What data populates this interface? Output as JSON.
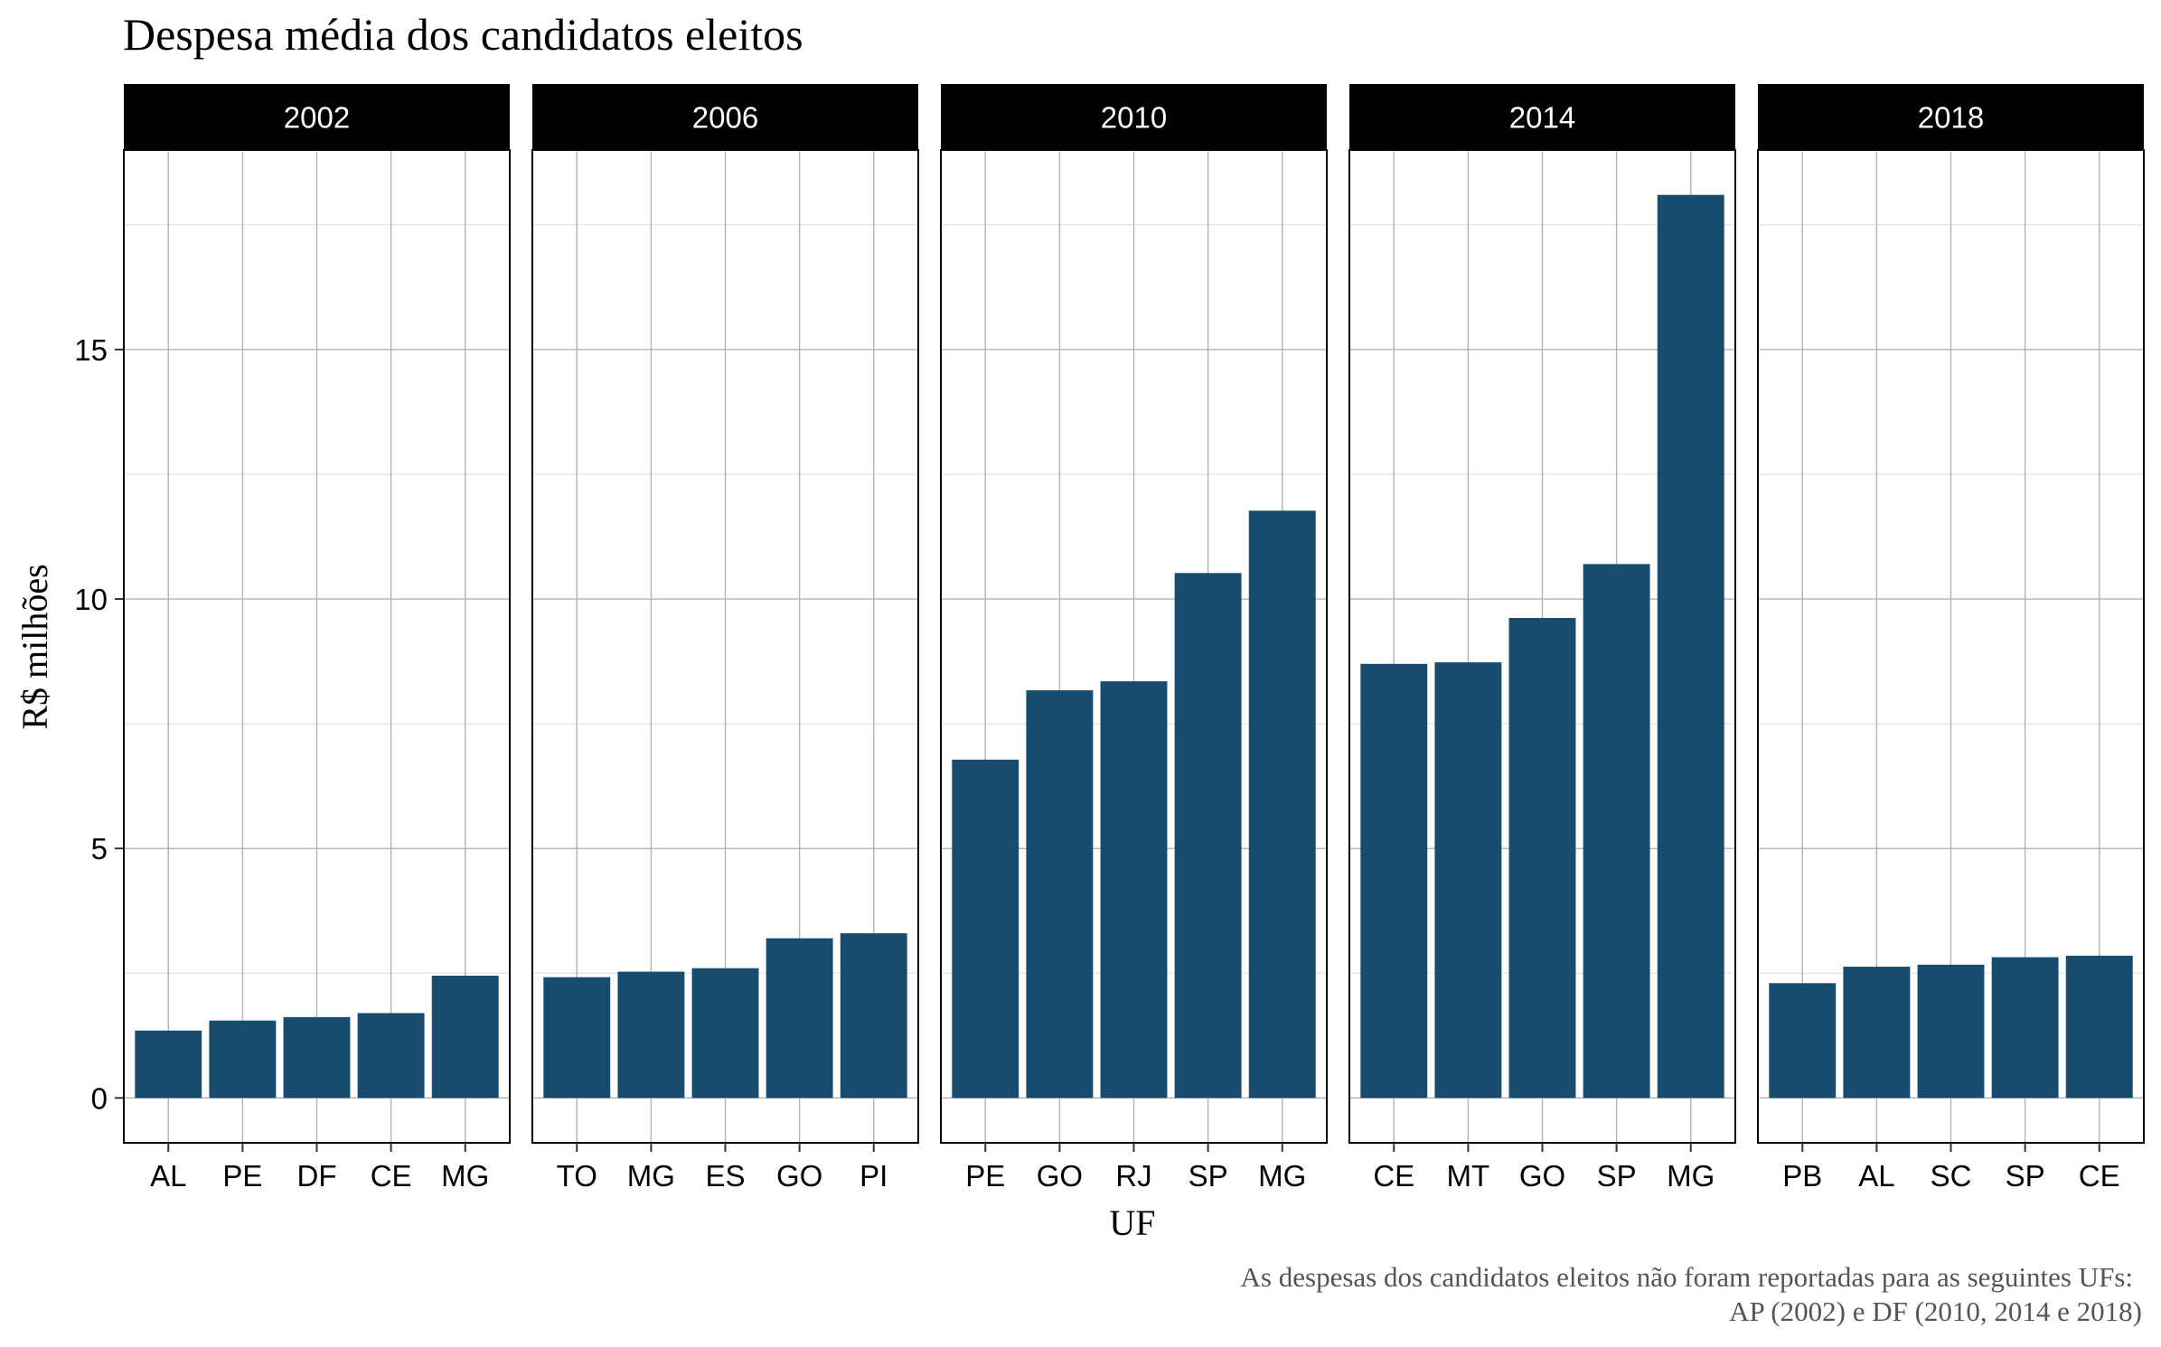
{
  "chart_data": {
    "type": "bar",
    "title": "Despesa média dos candidatos eleitos",
    "xlabel": "UF",
    "ylabel": "R$ milhões",
    "caption": [
      "As despesas dos candidatos eleitos não foram reportadas para as seguintes UFs:",
      "AP (2002) e DF (2010, 2014 e 2018)"
    ],
    "ylim": [
      -0.9,
      19.0
    ],
    "yticks": [
      0,
      5,
      10,
      15
    ],
    "grid": true,
    "bar_color": "#174c6e",
    "strip_color": "#000000",
    "facets": [
      {
        "label": "2002",
        "categories": [
          "AL",
          "PE",
          "DF",
          "CE",
          "MG"
        ],
        "values": [
          1.35,
          1.55,
          1.62,
          1.7,
          2.45
        ]
      },
      {
        "label": "2006",
        "categories": [
          "TO",
          "MG",
          "ES",
          "GO",
          "PI"
        ],
        "values": [
          2.42,
          2.53,
          2.6,
          3.2,
          3.3
        ]
      },
      {
        "label": "2010",
        "categories": [
          "PE",
          "GO",
          "RJ",
          "SP",
          "MG"
        ],
        "values": [
          6.78,
          8.17,
          8.35,
          10.52,
          11.77
        ]
      },
      {
        "label": "2014",
        "categories": [
          "CE",
          "MT",
          "GO",
          "SP",
          "MG"
        ],
        "values": [
          8.7,
          8.73,
          9.62,
          10.7,
          18.1
        ]
      },
      {
        "label": "2018",
        "categories": [
          "PB",
          "AL",
          "SC",
          "SP",
          "CE"
        ],
        "values": [
          2.3,
          2.63,
          2.67,
          2.82,
          2.85
        ]
      }
    ]
  }
}
